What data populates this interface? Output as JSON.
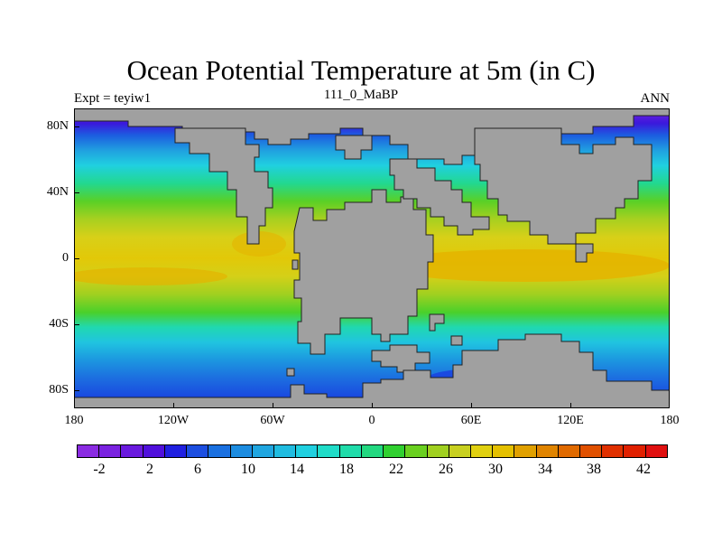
{
  "figure": {
    "title": "Ocean Potential Temperature at 5m (in C)",
    "left_string": "Expt = teyiw1",
    "center_string": "111_0_MaBP",
    "right_string": "ANN"
  },
  "map": {
    "land_color": "#a0a0a0",
    "y_axis_labels": [
      "80N",
      "40N",
      "0",
      "40S",
      "80S"
    ],
    "x_axis_labels": [
      "180",
      "120W",
      "60W",
      "0",
      "60E",
      "120E",
      "180"
    ]
  },
  "colorbar": {
    "labels": [
      "-2",
      "2",
      "6",
      "10",
      "14",
      "18",
      "22",
      "26",
      "30",
      "34",
      "38",
      "42"
    ],
    "colors": [
      "#8a2be2",
      "#7a22e0",
      "#6a1ade",
      "#5010dc",
      "#2020e0",
      "#1c4ee0",
      "#1a70e0",
      "#1c8ce0",
      "#20a6e0",
      "#20bce0",
      "#20d0e0",
      "#20dcc8",
      "#20dcaa",
      "#22d880",
      "#30d030",
      "#6ad020",
      "#a0d020",
      "#c8d020",
      "#e0d010",
      "#e4c000",
      "#e0a000",
      "#e08400",
      "#e06a00",
      "#e05000",
      "#e03000",
      "#e02000",
      "#e01010"
    ]
  }
}
